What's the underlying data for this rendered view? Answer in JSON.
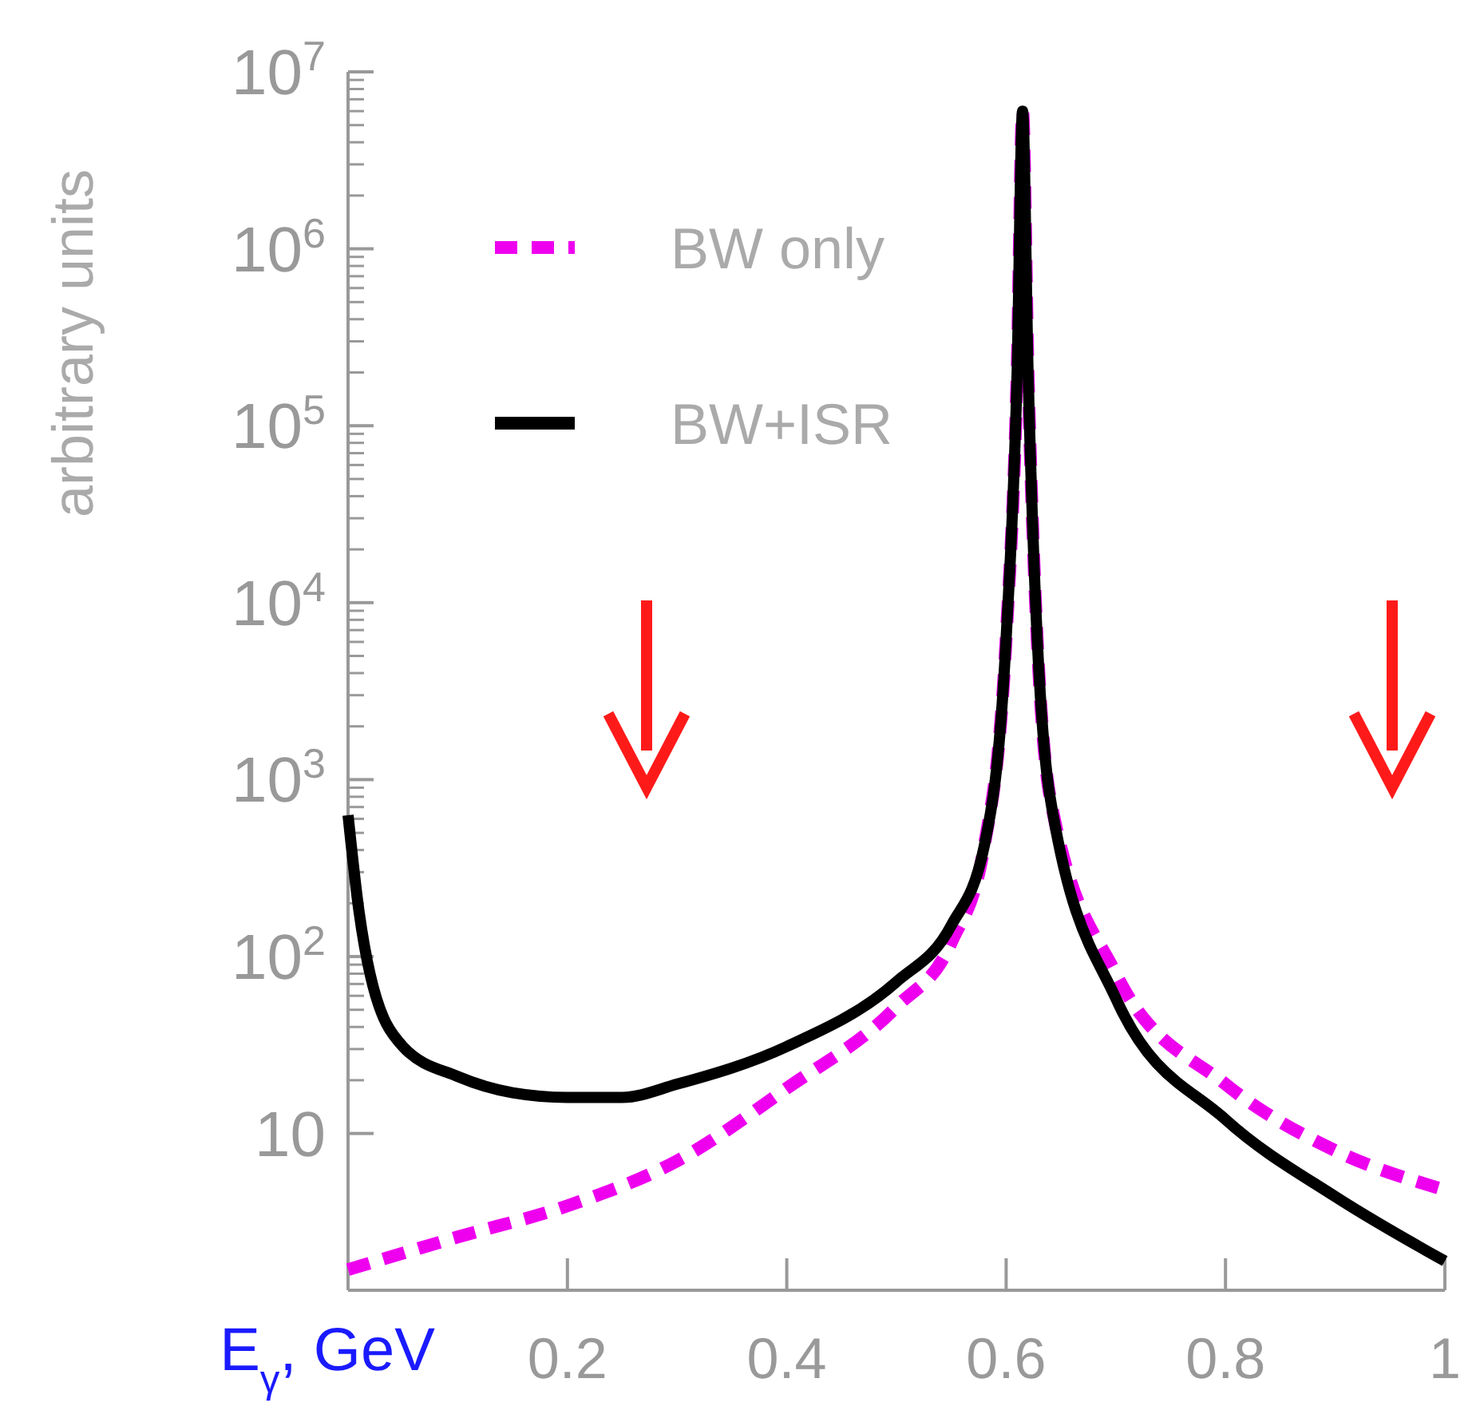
{
  "chart_data": {
    "type": "line",
    "xlabel": "E$_{γ}$, GeV",
    "ylabel": "arbitrary units",
    "log": "y",
    "grid": false,
    "legend": "top left",
    "xlim": [
      0,
      1
    ],
    "xticks": [
      0.2,
      0.4,
      0.6,
      0.8,
      1
    ],
    "ylim": [
      1.3,
      10000000
    ],
    "yticks": [
      {
        "value": 10,
        "label": "10"
      },
      {
        "value": 100,
        "label": "10$^{2}$"
      },
      {
        "value": 1000,
        "label": "10$^{3}$"
      },
      {
        "value": 10000,
        "label": "10$^{4}$"
      },
      {
        "value": 100000,
        "label": "10$^{5}$"
      },
      {
        "value": 1000000,
        "label": "10$^{6}$"
      },
      {
        "value": 10000000,
        "label": "10$^{7}$"
      }
    ],
    "series": [
      {
        "name": "BW only",
        "color": "#ee00ee",
        "line_style": "dashed",
        "x": [
          0,
          0.1,
          0.2,
          0.3,
          0.4,
          0.5,
          0.55,
          0.58,
          0.6,
          0.61,
          0.615,
          0.62,
          0.64,
          0.7,
          0.8,
          0.9,
          1
        ],
        "values": [
          1.7,
          2.6,
          3.9,
          7,
          18,
          52,
          120,
          420,
          6300,
          200000,
          6000000,
          200000,
          800,
          80,
          19,
          8,
          4.8
        ]
      },
      {
        "name": "BW+ISR",
        "color": "#000000",
        "line_style": "solid",
        "x": [
          0,
          0.01,
          0.02,
          0.05,
          0.1,
          0.15,
          0.2,
          0.25,
          0.3,
          0.4,
          0.5,
          0.55,
          0.58,
          0.6,
          0.61,
          0.615,
          0.62,
          0.64,
          0.7,
          0.8,
          0.9,
          1
        ],
        "values": [
          630,
          180,
          80,
          31,
          21,
          17,
          16,
          16,
          19,
          31,
          72,
          150,
          420,
          6300,
          200000,
          6000000,
          200000,
          800,
          58,
          12,
          4.4,
          1.9
        ]
      }
    ]
  }
}
